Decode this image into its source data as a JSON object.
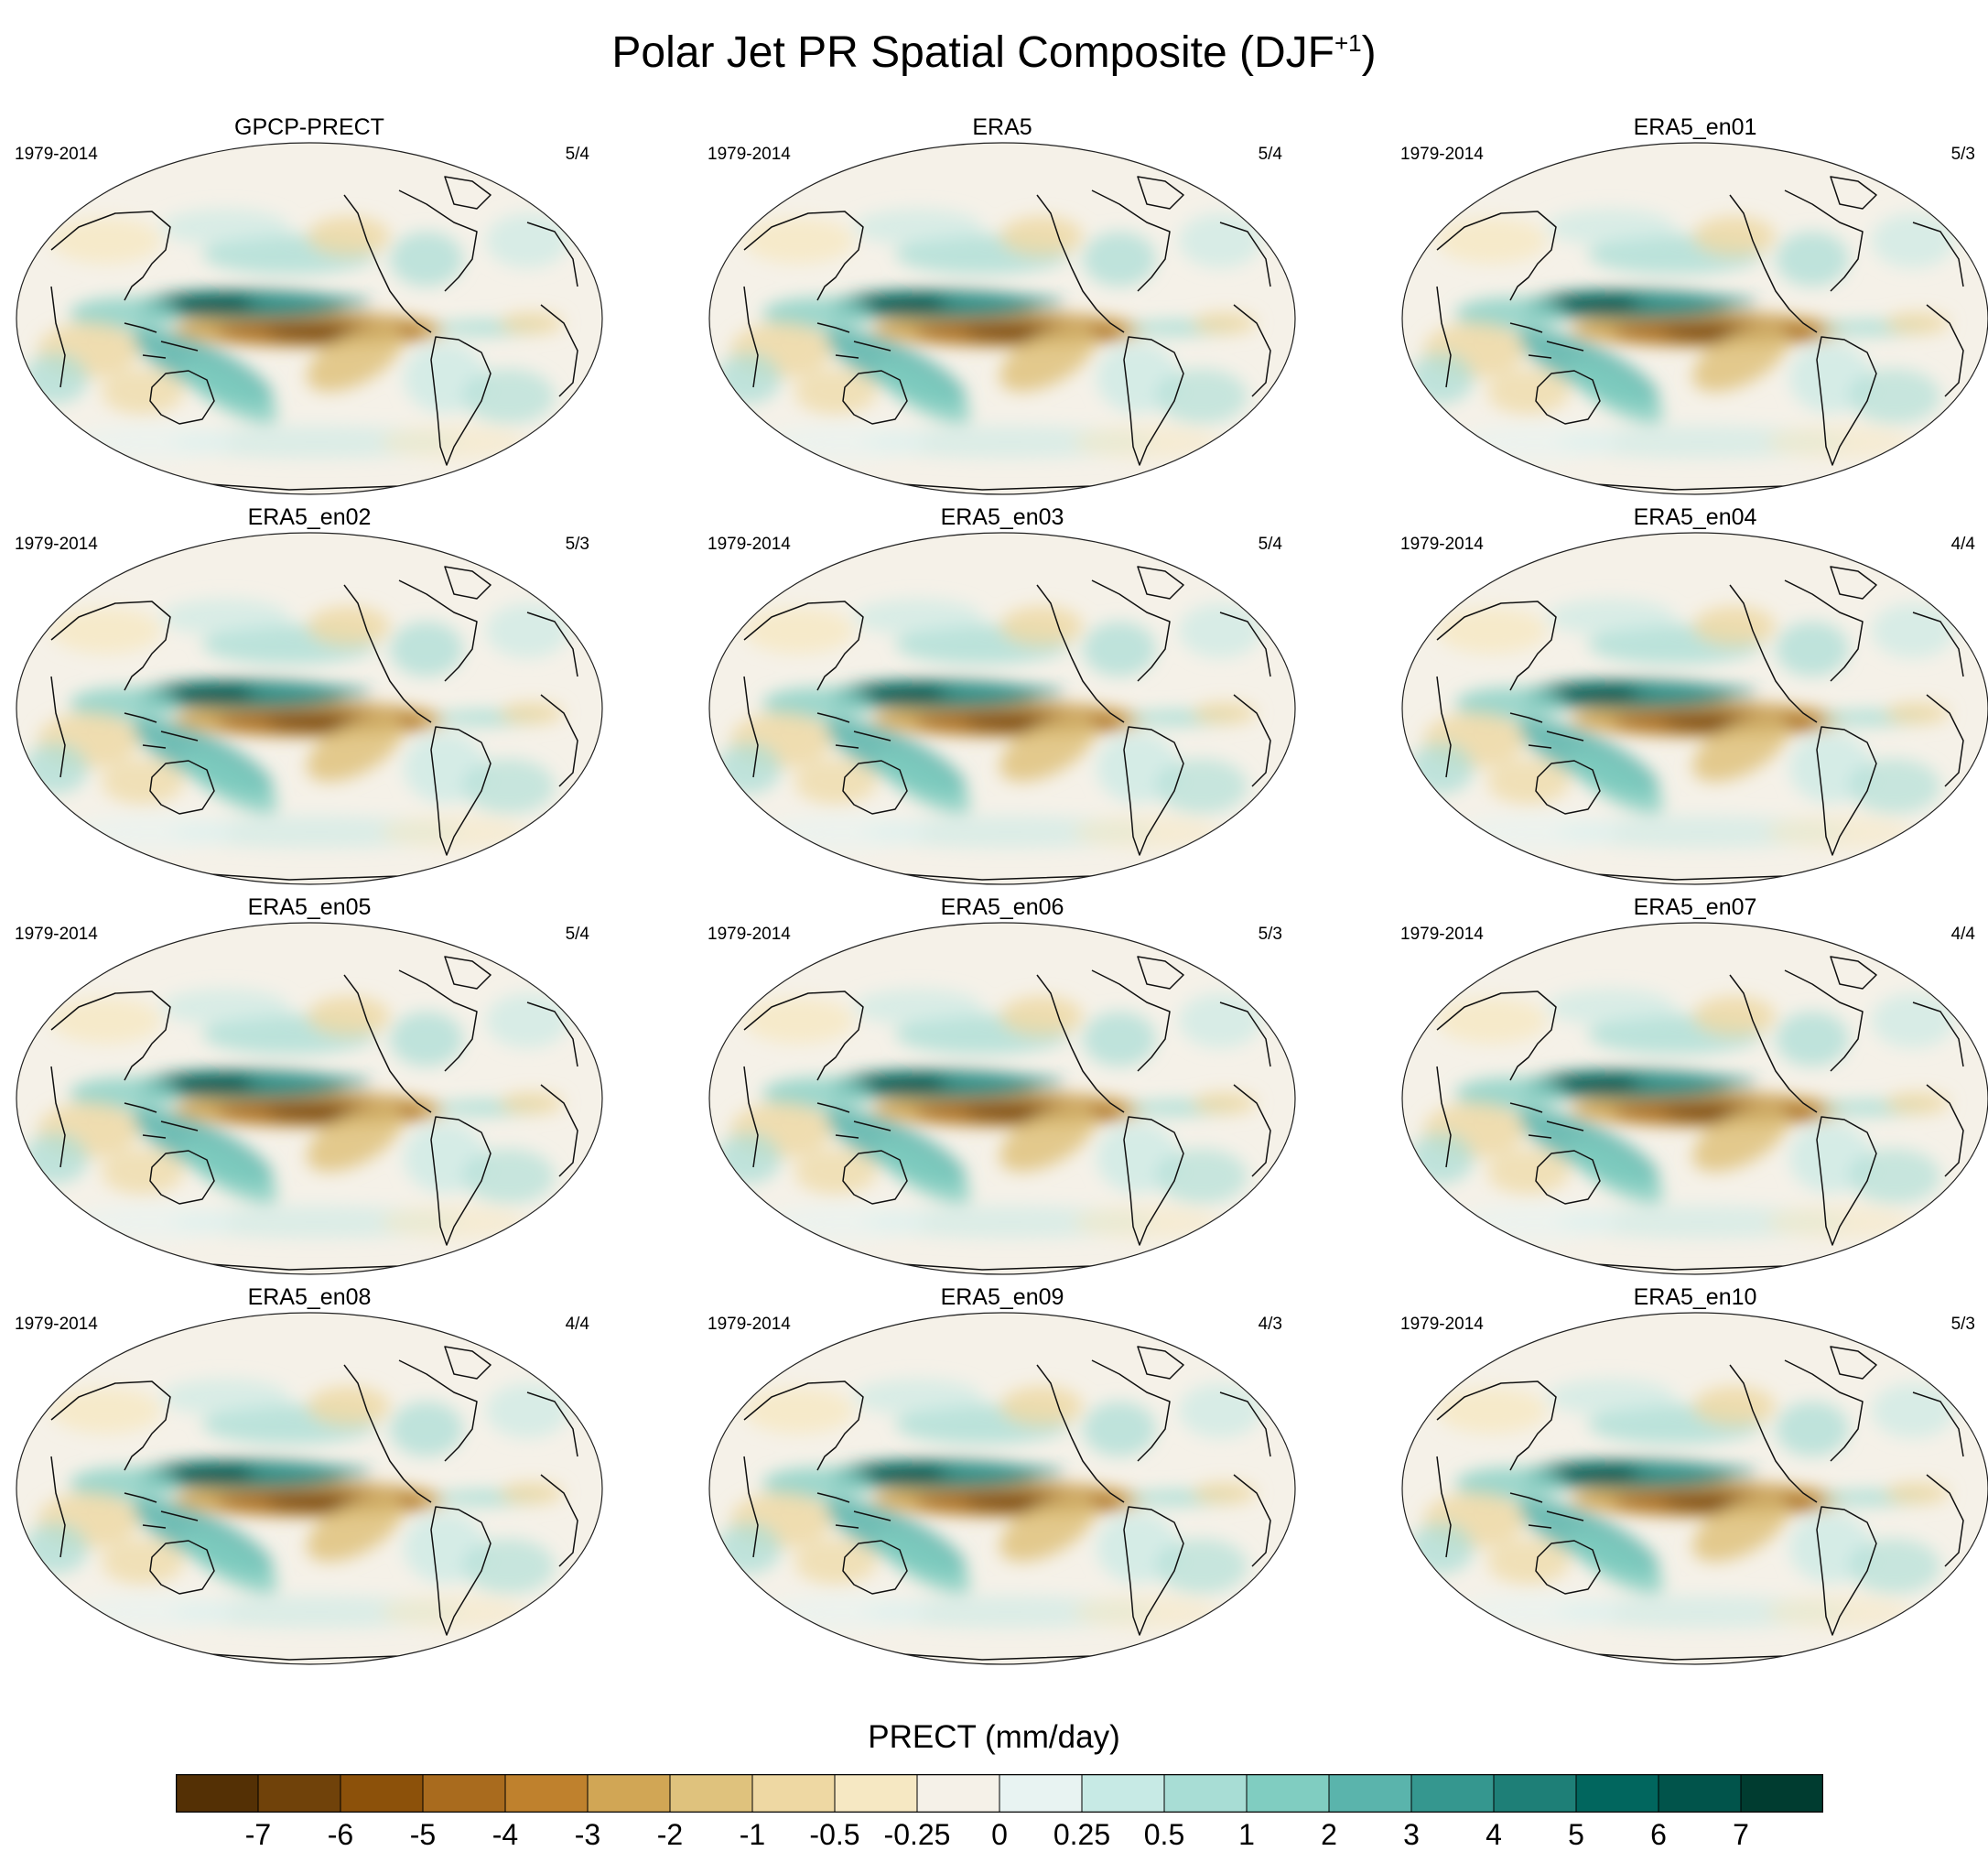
{
  "title": {
    "main": "Polar Jet PR Spatial Composite (DJF",
    "sup": "+1",
    "close": ")"
  },
  "panels": [
    {
      "name": "GPCP-PRECT",
      "period": "1979-2014",
      "count": "5/4"
    },
    {
      "name": "ERA5",
      "period": "1979-2014",
      "count": "5/4"
    },
    {
      "name": "ERA5_en01",
      "period": "1979-2014",
      "count": "5/3"
    },
    {
      "name": "ERA5_en02",
      "period": "1979-2014",
      "count": "5/3"
    },
    {
      "name": "ERA5_en03",
      "period": "1979-2014",
      "count": "5/4"
    },
    {
      "name": "ERA5_en04",
      "period": "1979-2014",
      "count": "4/4"
    },
    {
      "name": "ERA5_en05",
      "period": "1979-2014",
      "count": "5/4"
    },
    {
      "name": "ERA5_en06",
      "period": "1979-2014",
      "count": "5/3"
    },
    {
      "name": "ERA5_en07",
      "period": "1979-2014",
      "count": "4/4"
    },
    {
      "name": "ERA5_en08",
      "period": "1979-2014",
      "count": "4/4"
    },
    {
      "name": "ERA5_en09",
      "period": "1979-2014",
      "count": "4/3"
    },
    {
      "name": "ERA5_en10",
      "period": "1979-2014",
      "count": "5/3"
    }
  ],
  "colorbar": {
    "label": "PRECT (mm/day)",
    "ticks": [
      "-7",
      "-6",
      "-5",
      "-4",
      "-3",
      "-2",
      "-1",
      "-0.5",
      "-0.25",
      "0",
      "0.25",
      "0.5",
      "1",
      "2",
      "3",
      "4",
      "5",
      "6",
      "7"
    ],
    "colors": [
      "#543005",
      "#70420a",
      "#8c510a",
      "#a96b1e",
      "#bf812d",
      "#d1a655",
      "#dfc27d",
      "#eed8a3",
      "#f6e8c3",
      "#f5f1e8",
      "#e8f3f2",
      "#c7eae5",
      "#a8ddd5",
      "#80cdc1",
      "#5ab4ac",
      "#35978f",
      "#1e7f77",
      "#01665e",
      "#01544b",
      "#003c30"
    ]
  },
  "colors": {
    "wet": "#01665e",
    "dry": "#8c510a",
    "neutral": "#f5f1e8",
    "coast": "#111111"
  }
}
